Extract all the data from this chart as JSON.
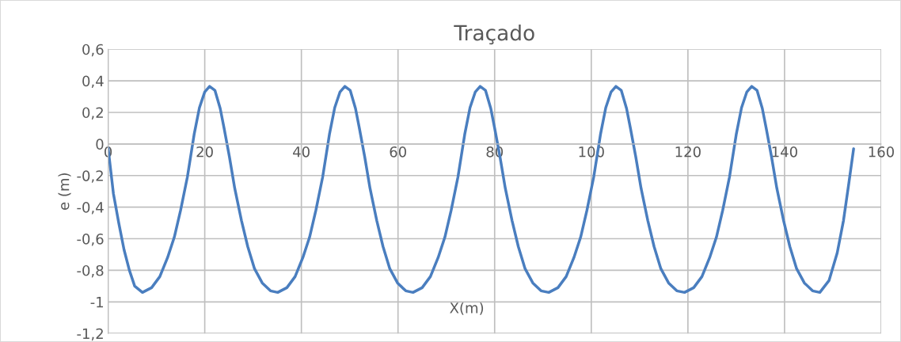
{
  "chart_data": {
    "type": "line",
    "title": "Traçado",
    "xlabel": "X(m)",
    "ylabel": "e (m)",
    "xlim": [
      0,
      160
    ],
    "xticks": [
      0,
      20,
      40,
      60,
      80,
      100,
      120,
      140,
      160
    ],
    "ylim": [
      -1.2,
      0.6
    ],
    "yticks": [
      {
        "value": -1.2,
        "label": "-1,2"
      },
      {
        "value": -1,
        "label": "-1"
      },
      {
        "value": -0.8,
        "label": "-0,8"
      },
      {
        "value": -0.6,
        "label": "-0,6"
      },
      {
        "value": -0.4,
        "label": "-0,4"
      },
      {
        "value": -0.2,
        "label": "-0,2"
      },
      {
        "value": 0,
        "label": "0"
      },
      {
        "value": 0.2,
        "label": "0,2"
      },
      {
        "value": 0.4,
        "label": "0,4"
      },
      {
        "value": 0.6,
        "label": "0,6"
      }
    ],
    "grid": true,
    "marker": "none",
    "line_style": "solid",
    "series": [
      {
        "color": "#4a7ebf",
        "x": [
          0,
          1.1,
          2.2,
          3.3,
          4.4,
          5.5,
          7.1,
          9,
          10.7,
          12.3,
          13.7,
          15,
          16.4,
          17.8,
          18.9,
          20,
          21,
          22.1,
          23.2,
          24,
          25.1,
          26.2,
          27.6,
          28.9,
          30.3,
          31.9,
          33.6,
          35.1,
          37,
          38.7,
          40.3,
          41.7,
          43,
          44.4,
          45.8,
          46.9,
          48,
          49,
          50.1,
          51.2,
          52,
          53.1,
          54.2,
          55.6,
          56.9,
          58.3,
          59.9,
          61.6,
          63.1,
          65,
          66.7,
          68.3,
          69.7,
          71,
          72.4,
          73.8,
          74.9,
          76,
          77,
          78.1,
          79.2,
          80,
          81.1,
          82.2,
          83.6,
          84.9,
          86.3,
          87.9,
          89.6,
          91.2,
          93.1,
          94.8,
          96.4,
          97.8,
          99.1,
          100.5,
          101.9,
          103,
          104.1,
          105.1,
          106.2,
          107.3,
          108.1,
          109.2,
          110.3,
          111.7,
          113,
          114.4,
          116,
          117.7,
          119.3,
          121.2,
          122.9,
          124.5,
          125.9,
          127.2,
          128.6,
          130,
          131.1,
          132.2,
          133.2,
          134.3,
          135.4,
          136.2,
          137.3,
          138.4,
          139.8,
          141.1,
          142.5,
          144.1,
          145.8,
          147.3,
          149.2,
          150.9,
          152.2,
          153.3,
          154.3
        ],
        "values": [
          -0.025,
          -0.315,
          -0.5,
          -0.67,
          -0.8,
          -0.9,
          -0.94,
          -0.91,
          -0.84,
          -0.72,
          -0.59,
          -0.42,
          -0.21,
          0.06,
          0.23,
          0.33,
          0.365,
          0.34,
          0.225,
          0.1,
          -0.08,
          -0.28,
          -0.485,
          -0.65,
          -0.79,
          -0.88,
          -0.93,
          -0.94,
          -0.91,
          -0.84,
          -0.72,
          -0.59,
          -0.42,
          -0.21,
          0.06,
          0.23,
          0.33,
          0.365,
          0.34,
          0.225,
          0.1,
          -0.08,
          -0.28,
          -0.485,
          -0.65,
          -0.79,
          -0.88,
          -0.93,
          -0.94,
          -0.91,
          -0.84,
          -0.72,
          -0.59,
          -0.42,
          -0.21,
          0.06,
          0.23,
          0.33,
          0.365,
          0.34,
          0.225,
          0.1,
          -0.08,
          -0.28,
          -0.485,
          -0.65,
          -0.79,
          -0.88,
          -0.93,
          -0.94,
          -0.91,
          -0.84,
          -0.72,
          -0.59,
          -0.42,
          -0.21,
          0.06,
          0.23,
          0.33,
          0.365,
          0.34,
          0.225,
          0.1,
          -0.08,
          -0.28,
          -0.485,
          -0.65,
          -0.79,
          -0.88,
          -0.93,
          -0.94,
          -0.91,
          -0.84,
          -0.72,
          -0.59,
          -0.42,
          -0.21,
          0.06,
          0.23,
          0.33,
          0.365,
          0.34,
          0.225,
          0.1,
          -0.08,
          -0.28,
          -0.485,
          -0.65,
          -0.79,
          -0.88,
          -0.93,
          -0.94,
          -0.865,
          -0.69,
          -0.485,
          -0.25,
          -0.03
        ]
      }
    ]
  }
}
